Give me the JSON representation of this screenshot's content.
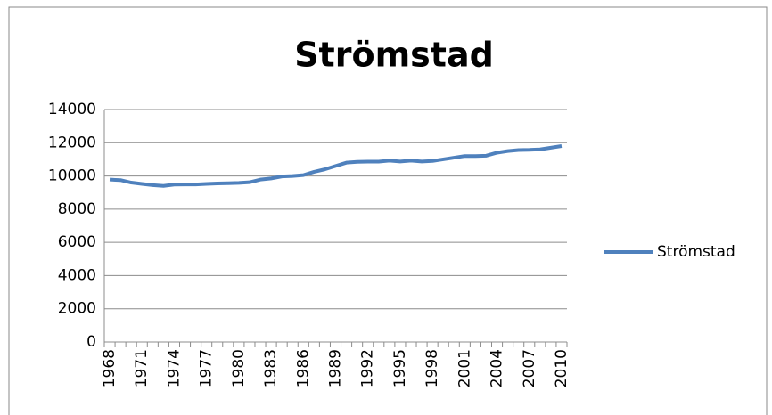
{
  "chart_data": {
    "type": "line",
    "title": "Strömstad",
    "categories": [
      "1968",
      null,
      null,
      "1971",
      null,
      null,
      "1974",
      null,
      null,
      "1977",
      null,
      null,
      "1980",
      null,
      null,
      "1983",
      null,
      null,
      "1986",
      null,
      null,
      "1989",
      null,
      null,
      "1992",
      null,
      null,
      "1995",
      null,
      null,
      "1998",
      null,
      null,
      "2001",
      null,
      null,
      "2004",
      null,
      null,
      "2007",
      null,
      null,
      "2010"
    ],
    "series": [
      {
        "name": "Strömstad",
        "color": "#4f81bd",
        "values": [
          9780,
          9750,
          9600,
          9520,
          9450,
          9400,
          9480,
          9490,
          9490,
          9520,
          9550,
          9560,
          9580,
          9620,
          9780,
          9850,
          9970,
          10000,
          10050,
          10250,
          10400,
          10600,
          10800,
          10850,
          10860,
          10860,
          10920,
          10870,
          10920,
          10870,
          10900,
          11000,
          11100,
          11200,
          11200,
          11220,
          11400,
          11500,
          11560,
          11570,
          11600,
          11700,
          11800
        ]
      }
    ],
    "ylim": [
      0,
      14000
    ],
    "yticks": [
      0,
      2000,
      4000,
      6000,
      8000,
      10000,
      12000,
      14000
    ],
    "grid": true,
    "legend": "right"
  }
}
